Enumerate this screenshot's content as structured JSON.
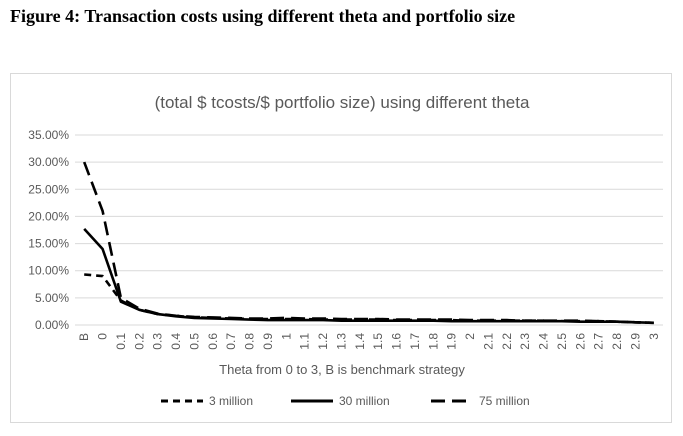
{
  "figure_title": "Figure 4: Transaction costs using different theta and portfolio size",
  "chart_data": {
    "type": "line",
    "title": "(total $ tcosts/$ portfolio size) using different theta",
    "xlabel": "Theta from 0 to 3, B is benchmark strategy",
    "ylabel": "",
    "ylim": [
      0,
      0.35
    ],
    "yticks": [
      "0.00%",
      "5.00%",
      "10.00%",
      "15.00%",
      "20.00%",
      "25.00%",
      "30.00%",
      "35.00%"
    ],
    "grid": "horizontal",
    "legend_position": "bottom",
    "categories": [
      "B",
      "0",
      "0.1",
      "0.2",
      "0.3",
      "0.4",
      "0.5",
      "0.6",
      "0.7",
      "0.8",
      "0.9",
      "1",
      "1.1",
      "1.2",
      "1.3",
      "1.4",
      "1.5",
      "1.6",
      "1.7",
      "1.8",
      "1.9",
      "2",
      "2.1",
      "2.2",
      "2.3",
      "2.4",
      "2.5",
      "2.6",
      "2.7",
      "2.8",
      "2.9",
      "3"
    ],
    "series": [
      {
        "name": "3 million",
        "dash": "short",
        "color": "#000000",
        "values": [
          0.093,
          0.09,
          0.045,
          0.028,
          0.02,
          0.017,
          0.014,
          0.013,
          0.012,
          0.011,
          0.011,
          0.011,
          0.011,
          0.01,
          0.01,
          0.01,
          0.01,
          0.009,
          0.009,
          0.009,
          0.009,
          0.008,
          0.008,
          0.008,
          0.008,
          0.008,
          0.007,
          0.007,
          0.007,
          0.006,
          0.005,
          0.004
        ]
      },
      {
        "name": "30 million",
        "dash": "solid",
        "color": "#000000",
        "values": [
          0.177,
          0.14,
          0.043,
          0.028,
          0.02,
          0.016,
          0.013,
          0.012,
          0.011,
          0.01,
          0.009,
          0.009,
          0.009,
          0.009,
          0.008,
          0.008,
          0.008,
          0.008,
          0.008,
          0.008,
          0.007,
          0.007,
          0.007,
          0.007,
          0.007,
          0.007,
          0.007,
          0.006,
          0.006,
          0.006,
          0.005,
          0.004
        ]
      },
      {
        "name": "75 million",
        "dash": "long",
        "color": "#000000",
        "values": [
          0.3,
          0.21,
          0.05,
          0.03,
          0.021,
          0.017,
          0.015,
          0.014,
          0.013,
          0.012,
          0.012,
          0.013,
          0.012,
          0.012,
          0.011,
          0.011,
          0.011,
          0.01,
          0.01,
          0.01,
          0.01,
          0.009,
          0.009,
          0.009,
          0.008,
          0.008,
          0.008,
          0.008,
          0.007,
          0.006,
          0.005,
          0.004
        ]
      }
    ]
  }
}
